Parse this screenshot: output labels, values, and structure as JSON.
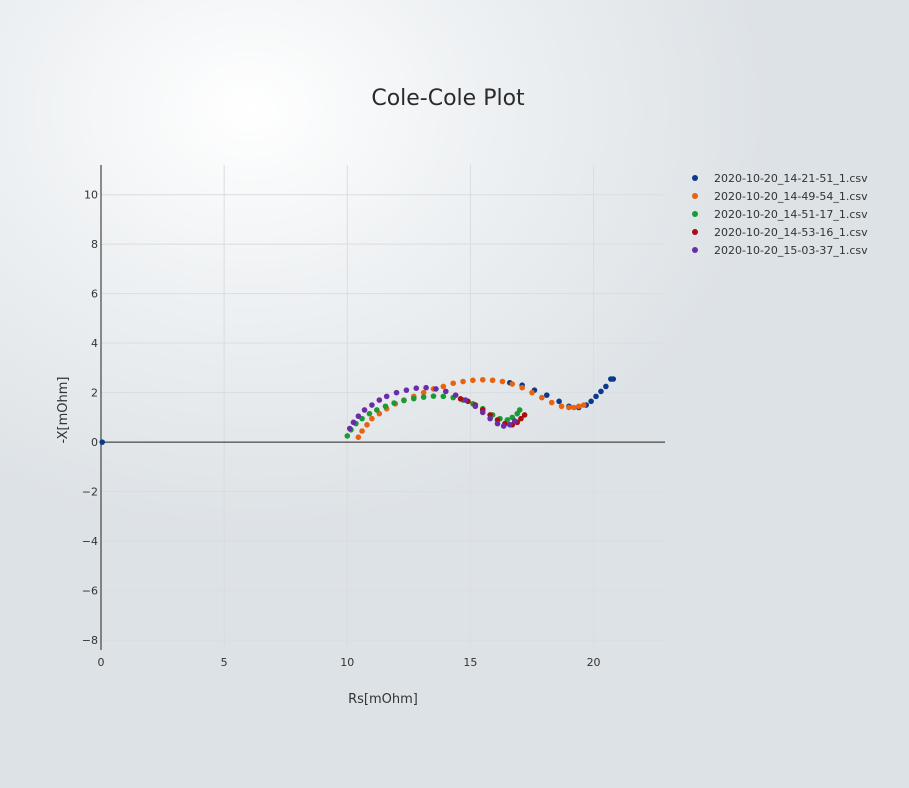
{
  "chart_data": {
    "type": "scatter",
    "title": "Cole-Cole Plot",
    "xlabel": "Rs[mOhm]",
    "ylabel": "-X[mOhm]",
    "xlim": [
      0,
      22.9
    ],
    "ylim": [
      -8.4,
      11.2
    ],
    "xticks": [
      0,
      5,
      10,
      15,
      20
    ],
    "yticks": [
      -8,
      -6,
      -4,
      -2,
      0,
      2,
      4,
      6,
      8,
      10
    ],
    "grid": true,
    "legend_position": "top-right",
    "series": [
      {
        "name": "2020-10-20_14-21-51_1.csv",
        "color": "#0b3a8c",
        "x": [
          0.05,
          16.6,
          17.1,
          17.6,
          18.1,
          18.6,
          19.0,
          19.4,
          19.7,
          19.9,
          20.1,
          20.3,
          20.5,
          20.7,
          20.8
        ],
        "y": [
          0.0,
          2.4,
          2.3,
          2.1,
          1.9,
          1.65,
          1.45,
          1.4,
          1.5,
          1.65,
          1.85,
          2.05,
          2.25,
          2.55,
          2.55
        ]
      },
      {
        "name": "2020-10-20_14-49-54_1.csv",
        "color": "#e8620f",
        "x": [
          10.45,
          10.6,
          10.8,
          11.0,
          11.3,
          11.6,
          11.95,
          12.3,
          12.7,
          13.1,
          13.5,
          13.9,
          14.3,
          14.7,
          15.1,
          15.5,
          15.9,
          16.3,
          16.7,
          17.1,
          17.5,
          17.9,
          18.3,
          18.7,
          19.0,
          19.2,
          19.4,
          19.6
        ],
        "y": [
          0.2,
          0.45,
          0.7,
          0.95,
          1.15,
          1.35,
          1.55,
          1.7,
          1.85,
          2.0,
          2.15,
          2.25,
          2.38,
          2.45,
          2.5,
          2.52,
          2.5,
          2.45,
          2.35,
          2.2,
          2.0,
          1.8,
          1.6,
          1.45,
          1.4,
          1.4,
          1.45,
          1.5
        ]
      },
      {
        "name": "2020-10-20_14-51-17_1.csv",
        "color": "#1a9a32",
        "x": [
          10.0,
          10.15,
          10.35,
          10.6,
          10.9,
          11.2,
          11.55,
          11.9,
          12.3,
          12.7,
          13.1,
          13.5,
          13.9,
          14.3,
          14.7,
          15.1,
          15.5,
          15.9,
          16.2,
          16.5,
          16.7,
          16.9,
          17.0
        ],
        "y": [
          0.25,
          0.5,
          0.75,
          0.95,
          1.15,
          1.3,
          1.45,
          1.58,
          1.68,
          1.76,
          1.82,
          1.86,
          1.85,
          1.8,
          1.7,
          1.55,
          1.35,
          1.1,
          0.95,
          0.9,
          1.0,
          1.15,
          1.3
        ]
      },
      {
        "name": "2020-10-20_14-53-16_1.csv",
        "color": "#a80f0f",
        "x": [
          14.6,
          14.9,
          15.2,
          15.5,
          15.8,
          16.1,
          16.4,
          16.7,
          16.9,
          17.05,
          17.2
        ],
        "y": [
          1.75,
          1.65,
          1.5,
          1.3,
          1.1,
          0.9,
          0.75,
          0.7,
          0.8,
          0.95,
          1.1
        ]
      },
      {
        "name": "2020-10-20_15-03-37_1.csv",
        "color": "#6a2ca8",
        "x": [
          10.1,
          10.25,
          10.45,
          10.7,
          11.0,
          11.3,
          11.6,
          12.0,
          12.4,
          12.8,
          13.2,
          13.6,
          14.0,
          14.4,
          14.8,
          15.2,
          15.5,
          15.8,
          16.1,
          16.35,
          16.6,
          16.8
        ],
        "y": [
          0.55,
          0.8,
          1.05,
          1.3,
          1.5,
          1.7,
          1.85,
          2.0,
          2.1,
          2.18,
          2.2,
          2.15,
          2.05,
          1.9,
          1.7,
          1.45,
          1.2,
          0.95,
          0.75,
          0.65,
          0.7,
          0.85
        ]
      }
    ]
  }
}
